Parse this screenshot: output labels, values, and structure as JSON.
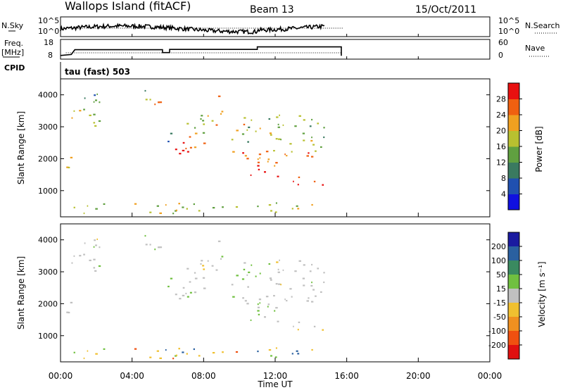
{
  "header": {
    "station": "Wallops Island (fitACF)",
    "beam": "Beam 13",
    "date": "15/Oct/2011"
  },
  "panels": {
    "nsky": {
      "label": "N.Sky",
      "right_label": "N.Search",
      "tick_top": "10^5",
      "tick_bottom": "10^0"
    },
    "freq": {
      "label_line1": "Freq.",
      "label_line2": "[MHz]",
      "tick_top": "18",
      "tick_bottom": "8",
      "right_label": "Nave",
      "right_tick_top": "60",
      "right_tick_bottom": "0"
    },
    "cpid": {
      "label": "CPID",
      "mode": "tau (fast) 503"
    },
    "power": {
      "ylabel": "Slant Range [km]",
      "cbar_label": "Power [dB]",
      "cbar_ticks": [
        "4",
        "8",
        "12",
        "16",
        "20",
        "24",
        "28"
      ],
      "cbar_colors": [
        "#1010e0",
        "#2050b0",
        "#3a7a60",
        "#60a040",
        "#b8c030",
        "#f0a020",
        "#f06010",
        "#e81010"
      ]
    },
    "velocity": {
      "ylabel": "Slant Range [km]",
      "cbar_label": "Velocity [m s⁻¹]",
      "cbar_ticks": [
        "200",
        "100",
        "50",
        "15",
        "-15",
        "-50",
        "-100",
        "-200"
      ],
      "cbar_colors": [
        "#1a1aa0",
        "#2a60a0",
        "#3a8a60",
        "#70c040",
        "#c0c0c0",
        "#f0c030",
        "#f09020",
        "#f05010",
        "#e01010"
      ]
    }
  },
  "axes": {
    "x_ticks": [
      "00:00",
      "04:00",
      "08:00",
      "12:00",
      "16:00",
      "20:00",
      "00:00"
    ],
    "xlabel": "Time UT",
    "range_ticks": [
      "1000",
      "2000",
      "3000",
      "4000"
    ]
  },
  "chart_data": {
    "type": "heatmap",
    "title": "Wallops Island (fitACF)",
    "xlabel": "Time UT",
    "ylabel": "Slant Range [km]",
    "xlim_hours": [
      0,
      24
    ],
    "ylim_km": [
      180,
      4500
    ],
    "power_blobs": [
      {
        "t0": 0.0,
        "t1": 0.6,
        "r0": 1400,
        "r1": 2200,
        "p": 22
      },
      {
        "t0": 0.6,
        "t1": 1.2,
        "r0": 2000,
        "r1": 3600,
        "p": 20
      },
      {
        "t0": 1.2,
        "t1": 2.2,
        "r0": 2400,
        "r1": 4000,
        "p": 16
      },
      {
        "t0": 1.8,
        "t1": 2.5,
        "r0": 3800,
        "r1": 4400,
        "p": 10
      },
      {
        "t0": 4.6,
        "t1": 5.1,
        "r0": 3700,
        "r1": 4400,
        "p": 16
      },
      {
        "t0": 5.1,
        "t1": 5.6,
        "r0": 3300,
        "r1": 3900,
        "p": 24
      },
      {
        "t0": 5.9,
        "t1": 6.3,
        "r0": 2000,
        "r1": 3000,
        "p": 8
      },
      {
        "t0": 6.2,
        "t1": 8.2,
        "r0": 2100,
        "r1": 2800,
        "p": 28
      },
      {
        "t0": 6.5,
        "t1": 8.8,
        "r0": 2800,
        "r1": 3400,
        "p": 20
      },
      {
        "t0": 8.8,
        "t1": 9.5,
        "r0": 3400,
        "r1": 4100,
        "p": 22
      },
      {
        "t0": 9.4,
        "t1": 10.6,
        "r0": 2000,
        "r1": 3300,
        "p": 24
      },
      {
        "t0": 10.6,
        "t1": 12.2,
        "r0": 1300,
        "r1": 2000,
        "p": 28
      },
      {
        "t0": 12.2,
        "t1": 14.8,
        "r0": 1200,
        "r1": 1500,
        "p": 30
      },
      {
        "t0": 11.0,
        "t1": 14.8,
        "r0": 1700,
        "r1": 2300,
        "p": 24
      },
      {
        "t0": 10.0,
        "t1": 14.8,
        "r0": 2200,
        "r1": 3400,
        "p": 16
      },
      {
        "t0": 0.5,
        "t1": 14.5,
        "r0": 300,
        "r1": 650,
        "p": 18
      }
    ]
  }
}
